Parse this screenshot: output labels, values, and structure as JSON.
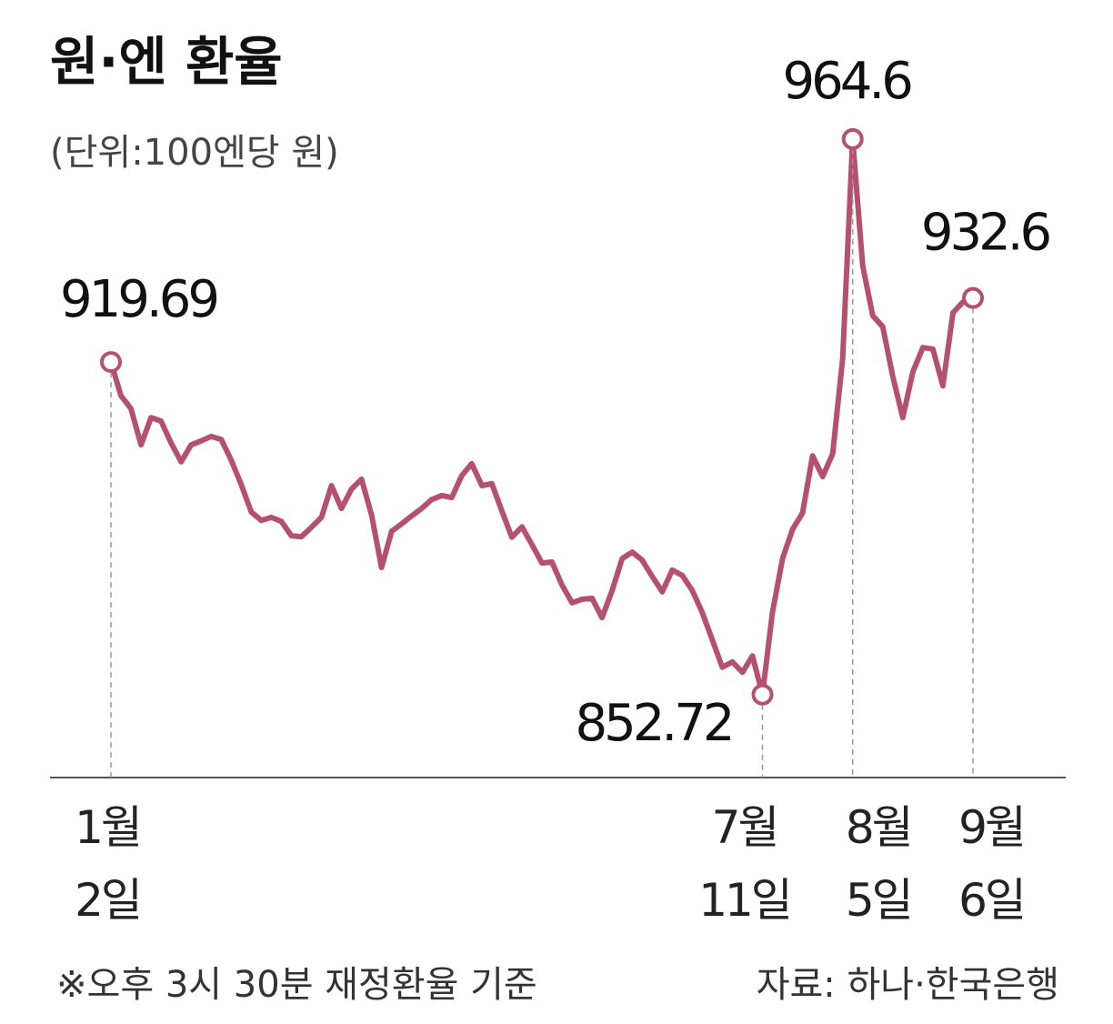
{
  "chart_data": {
    "type": "line",
    "title": "원·엔 환율",
    "subtitle": "(단위:100엔당 원)",
    "note": "※오후 3시 30분 재정환율 기준",
    "source": "자료: 하나·한국은행",
    "color": "#b5506e",
    "categories": [
      "1월\n2일",
      null,
      null,
      null,
      null,
      null,
      null,
      null,
      null,
      null,
      null,
      null,
      null,
      null,
      null,
      null,
      null,
      null,
      null,
      null,
      null,
      null,
      null,
      null,
      null,
      null,
      null,
      null,
      null,
      null,
      null,
      null,
      null,
      null,
      null,
      null,
      null,
      null,
      null,
      null,
      null,
      null,
      null,
      null,
      null,
      null,
      null,
      null,
      null,
      null,
      null,
      null,
      null,
      null,
      null,
      null,
      null,
      null,
      null,
      null,
      null,
      null,
      null,
      null,
      null,
      "7월\n11일",
      null,
      null,
      null,
      null,
      null,
      null,
      null,
      null,
      "8월\n5일",
      null,
      null,
      null,
      null,
      null,
      null,
      null,
      null,
      null,
      null,
      null,
      "9월\n6일"
    ],
    "values": [
      919.69,
      912.9,
      910.3,
      903.0,
      908.5,
      907.8,
      903.4,
      899.6,
      903.0,
      903.8,
      904.7,
      904.1,
      899.9,
      895.0,
      889.5,
      887.8,
      888.4,
      887.6,
      884.7,
      884.5,
      886.4,
      888.4,
      894.8,
      890.2,
      894.1,
      896.1,
      888.9,
      878.3,
      885.6,
      887.1,
      888.7,
      890.2,
      892.0,
      892.8,
      892.4,
      896.8,
      899.2,
      894.8,
      895.2,
      889.7,
      884.4,
      886.5,
      882.9,
      879.2,
      879.4,
      874.8,
      871.2,
      871.9,
      872.1,
      868.2,
      873.7,
      880.1,
      881.4,
      879.8,
      876.5,
      873.4,
      877.8,
      876.7,
      873.7,
      869.2,
      863.7,
      858.2,
      859.3,
      857.2,
      860.5,
      852.72,
      869.3,
      880.1,
      886.0,
      889.3,
      900.8,
      896.6,
      901.2,
      920.4,
      964.6,
      939.1,
      929.0,
      926.8,
      916.8,
      908.5,
      917.7,
      922.6,
      922.3,
      914.9,
      929.6,
      931.8,
      932.6
    ],
    "ylim": [
      836,
      985
    ]
  }
}
